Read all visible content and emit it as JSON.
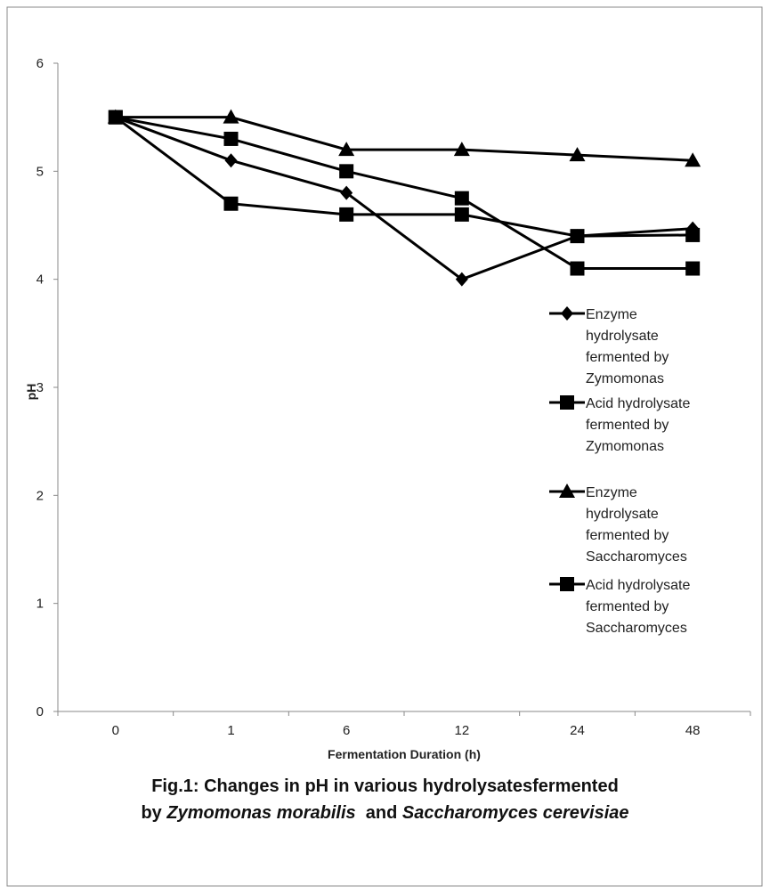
{
  "chart_data": {
    "type": "line",
    "title": "",
    "xlabel": "Fermentation Duration (h)",
    "ylabel": "pH",
    "categories": [
      "0",
      "1",
      "6",
      "12",
      "24",
      "48"
    ],
    "ylim": [
      0,
      6
    ],
    "yticks": [
      "0",
      "1",
      "2",
      "3",
      "4",
      "5",
      "6"
    ],
    "grid": false,
    "legend_position": "right",
    "series": [
      {
        "name": "Enzyme hydrolysate fermented by Zymomonas",
        "legend_lines": [
          "Enzyme",
          "hydrolysate",
          "fermented by",
          "Zymomonas"
        ],
        "marker": "diamond",
        "values": [
          5.5,
          5.1,
          4.8,
          4.0,
          4.4,
          4.47
        ]
      },
      {
        "name": "Acid hydrolysate fermented by Zymomonas",
        "legend_lines": [
          "Acid hydrolysate",
          "fermented by",
          "Zymomonas"
        ],
        "marker": "square",
        "values": [
          5.5,
          4.7,
          4.6,
          4.6,
          4.4,
          4.41
        ]
      },
      {
        "name": "Enzyme hydrolysate fermented by Saccharomyces",
        "legend_lines": [
          "Enzyme",
          "hydrolysate",
          "fermented by",
          "Saccharomyces"
        ],
        "marker": "triangle",
        "values": [
          5.5,
          5.5,
          5.2,
          5.2,
          5.15,
          5.1
        ]
      },
      {
        "name": "Acid hydrolysate fermented by Saccharomyces",
        "legend_lines": [
          "Acid hydrolysate",
          "fermented by",
          "Saccharomyces"
        ],
        "marker": "square",
        "values": [
          5.5,
          5.3,
          5.0,
          4.75,
          4.1,
          4.1
        ]
      }
    ],
    "line_color": "#000000"
  },
  "caption": {
    "line1": "Fig.1: Changes in pH in various hydrolysatesfermented",
    "line2_prefix": "by ",
    "organism1": "Zymomonas morabilis",
    "and": "  and ",
    "organism2": "Saccharomyces cerevisiae"
  }
}
